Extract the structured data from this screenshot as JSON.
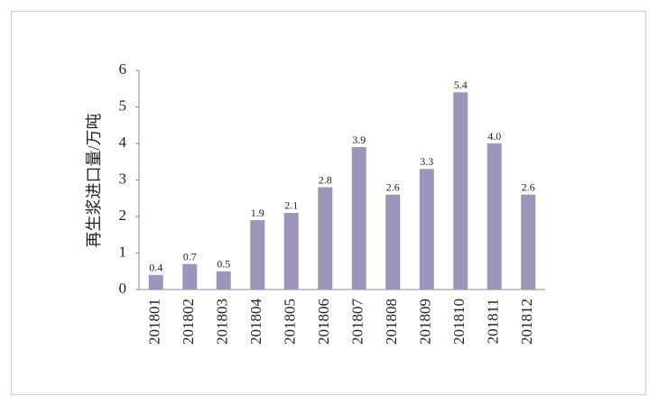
{
  "chart_data": {
    "type": "bar",
    "y_label": "再生浆进口量/万吨",
    "categories": [
      "201801",
      "201802",
      "201803",
      "201804",
      "201805",
      "201806",
      "201807",
      "201808",
      "201809",
      "201810",
      "201811",
      "201812"
    ],
    "values": [
      0.4,
      0.7,
      0.5,
      1.9,
      2.1,
      2.8,
      3.9,
      2.6,
      3.3,
      5.4,
      4.0,
      2.6
    ],
    "value_labels": [
      "0.4",
      "0.7",
      "0.5",
      "1.9",
      "2.1",
      "2.8",
      "3.9",
      "2.6",
      "3.3",
      "5.4",
      "4.0",
      "2.6"
    ],
    "color": "#9d96ba",
    "ylim": [
      0,
      6
    ],
    "yticks": [
      0,
      1,
      2,
      3,
      4,
      5,
      6
    ],
    "grid": false
  }
}
